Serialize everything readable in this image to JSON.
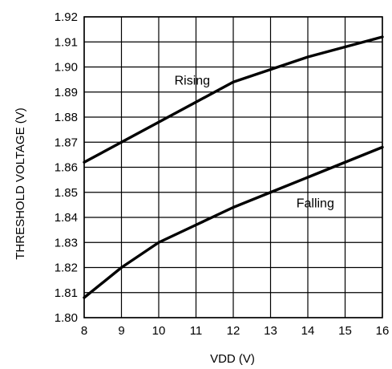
{
  "chart_data": {
    "type": "line",
    "title": "",
    "xlabel": "VDD (V)",
    "ylabel": "THRESHOLD VOLTAGE (V)",
    "xlim": [
      8,
      16
    ],
    "ylim": [
      1.8,
      1.92
    ],
    "x_ticks": [
      "8",
      "9",
      "10",
      "11",
      "12",
      "13",
      "14",
      "15",
      "16"
    ],
    "y_ticks": [
      "1.80",
      "1.81",
      "1.82",
      "1.83",
      "1.84",
      "1.85",
      "1.86",
      "1.87",
      "1.88",
      "1.89",
      "1.90",
      "1.91",
      "1.92"
    ],
    "grid": true,
    "legend": "none",
    "series": [
      {
        "name": "Rising",
        "x": [
          8,
          9,
          10,
          11,
          12,
          13,
          14,
          15,
          16
        ],
        "y": [
          1.862,
          1.87,
          1.878,
          1.886,
          1.894,
          1.899,
          1.904,
          1.908,
          1.912
        ]
      },
      {
        "name": "Falling",
        "x": [
          8,
          9,
          10,
          11,
          12,
          13,
          14,
          15,
          16
        ],
        "y": [
          1.808,
          1.82,
          1.83,
          1.837,
          1.844,
          1.85,
          1.856,
          1.862,
          1.868
        ]
      }
    ],
    "annotations": [
      {
        "text": "Rising",
        "series": "Rising"
      },
      {
        "text": "Falling",
        "series": "Falling"
      }
    ]
  }
}
